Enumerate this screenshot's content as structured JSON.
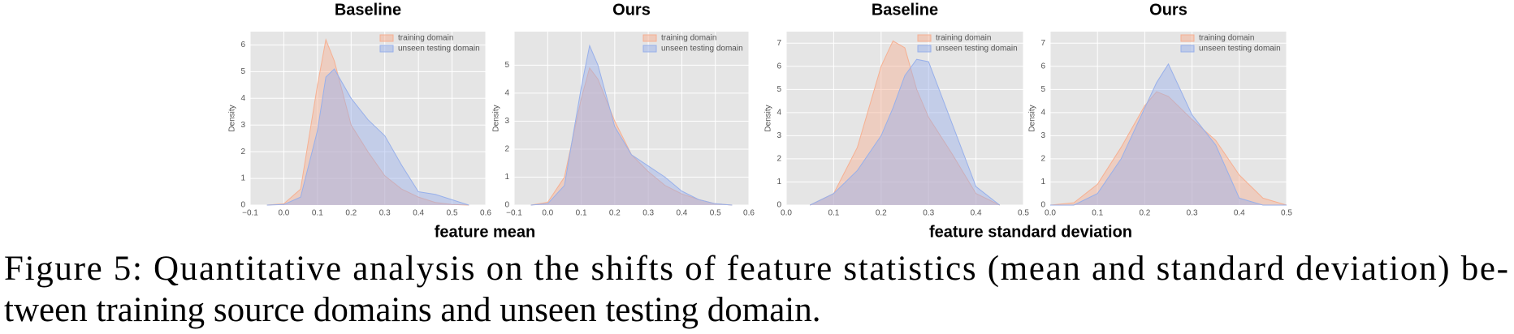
{
  "chart_data": [
    {
      "type": "area",
      "title": "Baseline",
      "y_label": "Density",
      "x": [
        -0.05,
        0,
        0.05,
        0.1,
        0.125,
        0.15,
        0.2,
        0.25,
        0.3,
        0.35,
        0.4,
        0.45,
        0.5,
        0.55
      ],
      "series": [
        {
          "name": "training domain",
          "color": "#f6b092",
          "values": [
            0,
            0.05,
            0.6,
            4.5,
            6.2,
            5.4,
            3.0,
            2.0,
            1.1,
            0.6,
            0.3,
            0.1,
            0.02,
            0
          ]
        },
        {
          "name": "unseen testing domain",
          "color": "#98b0ea",
          "values": [
            0,
            0.02,
            0.3,
            2.8,
            4.8,
            5.1,
            4.0,
            3.2,
            2.6,
            1.5,
            0.5,
            0.4,
            0.2,
            0
          ]
        }
      ],
      "xlim": [
        -0.1,
        0.6
      ],
      "xticks": [
        {
          "value": -0.1,
          "label": "−0.1"
        },
        {
          "value": 0,
          "label": "0.0"
        },
        0.1,
        0.2,
        0.3,
        0.4,
        0.5,
        0.6
      ],
      "ylim": [
        0,
        6.5
      ],
      "yticks": [
        0,
        1,
        2,
        3,
        4,
        5,
        6
      ],
      "grid": true,
      "legend": "upper-right"
    },
    {
      "type": "area",
      "title": "Ours",
      "y_label": "Density",
      "x": [
        -0.05,
        0,
        0.05,
        0.1,
        0.125,
        0.15,
        0.2,
        0.25,
        0.3,
        0.35,
        0.4,
        0.45,
        0.5,
        0.55
      ],
      "series": [
        {
          "name": "training domain",
          "color": "#f6b092",
          "values": [
            0,
            0.1,
            1.0,
            3.8,
            4.9,
            4.5,
            3.0,
            1.8,
            1.2,
            0.7,
            0.4,
            0.2,
            0.05,
            0
          ]
        },
        {
          "name": "unseen testing domain",
          "color": "#98b0ea",
          "values": [
            0,
            0.05,
            0.7,
            4.2,
            5.7,
            5.0,
            2.8,
            1.8,
            1.4,
            1.0,
            0.5,
            0.2,
            0.05,
            0
          ]
        }
      ],
      "xlim": [
        -0.1,
        0.6
      ],
      "xticks": [
        {
          "value": -0.1,
          "label": "−0.1"
        },
        {
          "value": 0,
          "label": "0.0"
        },
        0.1,
        0.2,
        0.3,
        0.4,
        0.5,
        0.6
      ],
      "ylim": [
        0,
        6.2
      ],
      "yticks": [
        0,
        1,
        2,
        3,
        4,
        5
      ],
      "grid": true,
      "legend": "upper-right"
    },
    {
      "type": "area",
      "title": "Baseline",
      "y_label": "Density",
      "x": [
        0.05,
        0.1,
        0.15,
        0.2,
        0.225,
        0.25,
        0.275,
        0.3,
        0.35,
        0.4,
        0.45
      ],
      "series": [
        {
          "name": "training domain",
          "color": "#f6b092",
          "values": [
            0,
            0.5,
            2.5,
            6.0,
            7.1,
            6.8,
            5.0,
            3.8,
            2.2,
            0.5,
            0
          ]
        },
        {
          "name": "unseen testing domain",
          "color": "#98b0ea",
          "values": [
            0,
            0.5,
            1.5,
            3.0,
            4.2,
            5.6,
            6.3,
            6.2,
            3.5,
            0.8,
            0
          ]
        }
      ],
      "xlim": [
        0,
        0.5
      ],
      "xticks": [
        {
          "value": 0,
          "label": "0.0"
        },
        0.1,
        0.2,
        0.3,
        0.4,
        0.5
      ],
      "ylim": [
        0,
        7.5
      ],
      "yticks": [
        0,
        1,
        2,
        3,
        4,
        5,
        6,
        7
      ],
      "grid": true,
      "legend": "upper-right"
    },
    {
      "type": "area",
      "title": "Ours",
      "y_label": "Density",
      "x": [
        0,
        0.05,
        0.1,
        0.15,
        0.2,
        0.225,
        0.25,
        0.3,
        0.35,
        0.4,
        0.45,
        0.5
      ],
      "series": [
        {
          "name": "training domain",
          "color": "#f6b092",
          "values": [
            0,
            0.1,
            0.9,
            2.5,
            4.3,
            4.9,
            4.7,
            3.7,
            2.8,
            1.3,
            0.3,
            0
          ]
        },
        {
          "name": "unseen testing domain",
          "color": "#98b0ea",
          "values": [
            0,
            0,
            0.5,
            2.0,
            4.2,
            5.3,
            6.1,
            3.9,
            2.6,
            0.3,
            0,
            0
          ]
        }
      ],
      "xlim": [
        0,
        0.5
      ],
      "xticks": [
        {
          "value": 0,
          "label": "0.0"
        },
        0.1,
        0.2,
        0.3,
        0.4,
        0.5
      ],
      "ylim": [
        0,
        7.5
      ],
      "yticks": [
        0,
        1,
        2,
        3,
        4,
        5,
        6,
        7
      ],
      "grid": true,
      "legend": "upper-right"
    }
  ],
  "group_labels": [
    "feature mean",
    "feature standard deviation"
  ],
  "caption": [
    "Figure 5: Quantitative analysis on the shifts of feature statistics (mean and standard deviation) be-",
    "tween training source domains and unseen testing domain."
  ]
}
